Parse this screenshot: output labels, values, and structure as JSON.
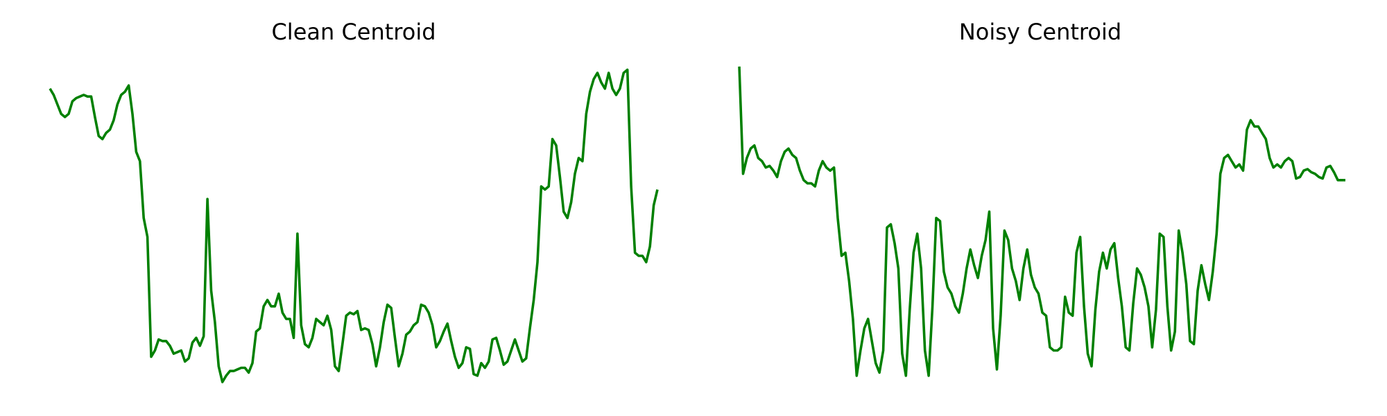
{
  "colors": {
    "line": "#008000",
    "background": "#ffffff"
  },
  "chart_data": [
    {
      "type": "line",
      "title": "Clean Centroid",
      "xlabel": "",
      "ylabel": "",
      "axes_visible": false,
      "grid": false,
      "legend": "none",
      "xlim": [
        0,
        160
      ],
      "ylim": [
        0,
        1
      ],
      "series": [
        {
          "values": [
            0.93,
            0.91,
            0.88,
            0.85,
            0.84,
            0.85,
            0.89,
            0.9,
            0.905,
            0.91,
            0.905,
            0.905,
            0.84,
            0.78,
            0.77,
            0.79,
            0.8,
            0.83,
            0.88,
            0.91,
            0.92,
            0.94,
            0.85,
            0.73,
            0.7,
            0.52,
            0.46,
            0.08,
            0.1,
            0.135,
            0.13,
            0.13,
            0.115,
            0.09,
            0.095,
            0.1,
            0.065,
            0.075,
            0.125,
            0.14,
            0.115,
            0.145,
            0.58,
            0.29,
            0.19,
            0.05,
            0.0,
            0.02,
            0.035,
            0.035,
            0.04,
            0.045,
            0.045,
            0.03,
            0.06,
            0.16,
            0.17,
            0.24,
            0.26,
            0.24,
            0.24,
            0.28,
            0.22,
            0.2,
            0.2,
            0.14,
            0.47,
            0.18,
            0.12,
            0.11,
            0.14,
            0.2,
            0.19,
            0.18,
            0.21,
            0.165,
            0.05,
            0.035,
            0.12,
            0.21,
            0.22,
            0.215,
            0.225,
            0.165,
            0.17,
            0.165,
            0.12,
            0.05,
            0.11,
            0.19,
            0.245,
            0.235,
            0.14,
            0.05,
            0.09,
            0.15,
            0.16,
            0.18,
            0.19,
            0.245,
            0.24,
            0.22,
            0.18,
            0.11,
            0.13,
            0.16,
            0.185,
            0.13,
            0.08,
            0.045,
            0.06,
            0.11,
            0.105,
            0.025,
            0.02,
            0.06,
            0.045,
            0.065,
            0.135,
            0.14,
            0.1,
            0.055,
            0.065,
            0.1,
            0.135,
            0.1,
            0.065,
            0.075,
            0.17,
            0.26,
            0.38,
            0.62,
            0.61,
            0.62,
            0.77,
            0.75,
            0.65,
            0.54,
            0.52,
            0.57,
            0.66,
            0.71,
            0.7,
            0.85,
            0.92,
            0.96,
            0.98,
            0.95,
            0.93,
            0.98,
            0.93,
            0.91,
            0.93,
            0.98,
            0.99,
            0.62,
            0.41,
            0.4,
            0.4,
            0.38,
            0.43,
            0.56,
            0.61
          ]
        }
      ]
    },
    {
      "type": "line",
      "title": "Noisy Centroid",
      "xlabel": "",
      "ylabel": "",
      "axes_visible": false,
      "grid": false,
      "legend": "none",
      "xlim": [
        0,
        160
      ],
      "ylim": [
        0,
        1
      ],
      "series": [
        {
          "values": [
            1.0,
            0.66,
            0.71,
            0.74,
            0.75,
            0.71,
            0.7,
            0.68,
            0.685,
            0.67,
            0.65,
            0.7,
            0.73,
            0.74,
            0.72,
            0.71,
            0.67,
            0.64,
            0.63,
            0.63,
            0.62,
            0.67,
            0.7,
            0.68,
            0.67,
            0.68,
            0.52,
            0.4,
            0.41,
            0.32,
            0.2,
            0.02,
            0.1,
            0.17,
            0.2,
            0.13,
            0.06,
            0.03,
            0.1,
            0.49,
            0.5,
            0.44,
            0.36,
            0.09,
            0.02,
            0.23,
            0.41,
            0.47,
            0.36,
            0.1,
            0.02,
            0.24,
            0.52,
            0.51,
            0.35,
            0.3,
            0.28,
            0.24,
            0.22,
            0.28,
            0.36,
            0.42,
            0.37,
            0.33,
            0.4,
            0.45,
            0.54,
            0.17,
            0.04,
            0.21,
            0.48,
            0.45,
            0.36,
            0.32,
            0.26,
            0.36,
            0.42,
            0.34,
            0.3,
            0.28,
            0.22,
            0.21,
            0.11,
            0.1,
            0.1,
            0.11,
            0.27,
            0.22,
            0.21,
            0.41,
            0.46,
            0.24,
            0.09,
            0.05,
            0.23,
            0.35,
            0.41,
            0.36,
            0.42,
            0.44,
            0.33,
            0.24,
            0.11,
            0.1,
            0.25,
            0.36,
            0.34,
            0.3,
            0.24,
            0.11,
            0.23,
            0.47,
            0.46,
            0.24,
            0.1,
            0.16,
            0.48,
            0.41,
            0.31,
            0.13,
            0.12,
            0.29,
            0.37,
            0.31,
            0.26,
            0.35,
            0.47,
            0.66,
            0.71,
            0.72,
            0.7,
            0.68,
            0.69,
            0.67,
            0.8,
            0.83,
            0.81,
            0.81,
            0.79,
            0.77,
            0.71,
            0.68,
            0.69,
            0.68,
            0.7,
            0.71,
            0.7,
            0.645,
            0.65,
            0.67,
            0.675,
            0.665,
            0.66,
            0.65,
            0.645,
            0.68,
            0.685,
            0.665,
            0.64,
            0.64,
            0.64
          ]
        }
      ]
    }
  ]
}
